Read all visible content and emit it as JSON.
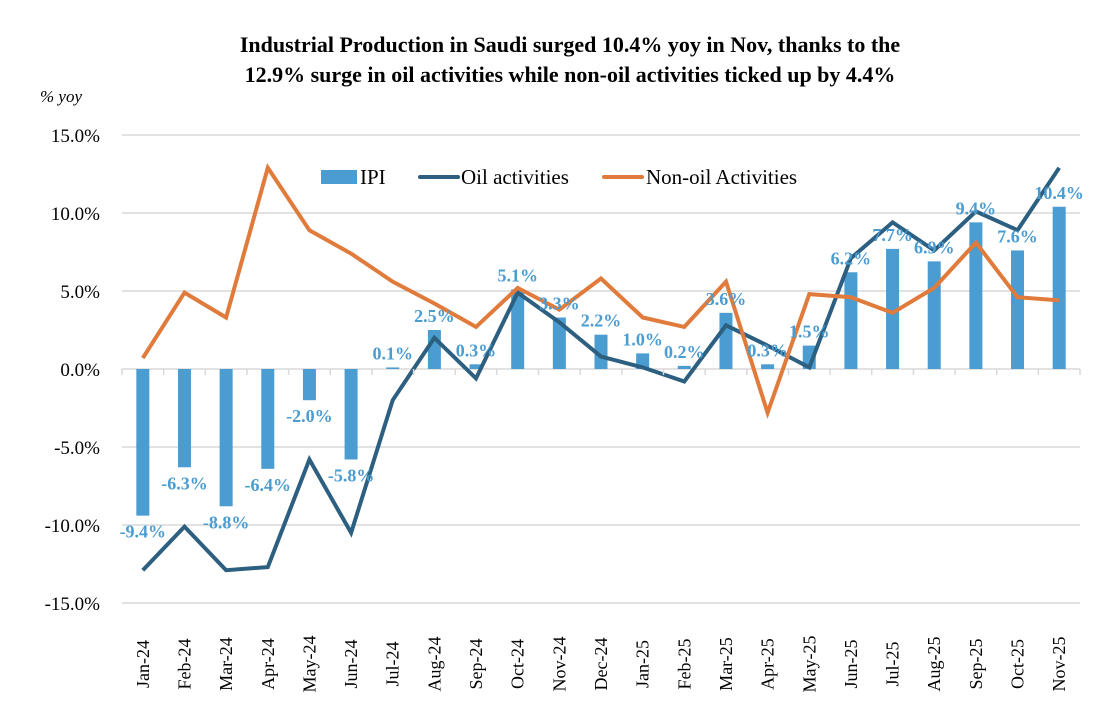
{
  "chart_data": {
    "type": "bar",
    "title_lines": [
      "Industrial Production in Saudi surged 10.4% yoy in Nov, thanks to the",
      "12.9% surge in oil activities while non-oil activities ticked up by 4.4%"
    ],
    "ylabel": "% yoy",
    "xlabel": "",
    "ylim": [
      -15,
      15
    ],
    "yticks": [
      15,
      10,
      5,
      0,
      -5,
      -10,
      -15
    ],
    "ytick_labels": [
      "15.0%",
      "10.0%",
      "5.0%",
      "0.0%",
      "-5.0%",
      "-10.0%",
      "-15.0%"
    ],
    "grid": true,
    "legend_position": "top-center",
    "categories": [
      "Jan-24",
      "Feb-24",
      "Mar-24",
      "Apr-24",
      "May-24",
      "Jun-24",
      "Jul-24",
      "Aug-24",
      "Sep-24",
      "Oct-24",
      "Nov-24",
      "Dec-24",
      "Jan-25",
      "Feb-25",
      "Mar-25",
      "Apr-25",
      "May-25",
      "Jun-25",
      "Jul-25",
      "Aug-25",
      "Sep-25",
      "Oct-25",
      "Nov-25"
    ],
    "series": [
      {
        "name": "IPI",
        "type": "bar",
        "color": "#4a9cd1",
        "values": [
          -9.4,
          -6.3,
          -8.8,
          -6.4,
          -2.0,
          -5.8,
          0.1,
          2.5,
          0.3,
          5.1,
          3.3,
          2.2,
          1.0,
          0.2,
          3.6,
          0.3,
          1.5,
          6.2,
          7.7,
          6.9,
          9.4,
          7.6,
          10.4
        ],
        "labels": [
          "-9.4%",
          "-6.3%",
          "-8.8%",
          "-6.4%",
          "-2.0%",
          "-5.8%",
          "0.1%",
          "2.5%",
          "0.3%",
          "5.1%",
          "3.3%",
          "2.2%",
          "1.0%",
          "0.2%",
          "3.6%",
          "0.3%",
          "1.5%",
          "6.2%",
          "7.7%",
          "6.9%",
          "9.4%",
          "7.6%",
          "10.4%"
        ]
      },
      {
        "name": "Oil activities",
        "type": "line",
        "color": "#2c5f80",
        "values": [
          -12.9,
          -10.1,
          -12.9,
          -12.7,
          -5.8,
          -10.5,
          -2.0,
          2.0,
          -0.6,
          4.9,
          3.0,
          0.8,
          0.1,
          -0.8,
          2.8,
          1.5,
          0.1,
          7.1,
          9.4,
          7.6,
          10.1,
          8.9,
          12.9
        ]
      },
      {
        "name": "Non-oil Activities",
        "type": "line",
        "color": "#e07b3c",
        "values": [
          0.7,
          4.9,
          3.3,
          12.9,
          8.9,
          7.4,
          5.6,
          4.2,
          2.7,
          5.2,
          3.8,
          5.8,
          3.3,
          2.7,
          5.6,
          -2.8,
          4.8,
          4.6,
          3.6,
          5.2,
          8.1,
          4.6,
          4.4
        ]
      }
    ]
  }
}
